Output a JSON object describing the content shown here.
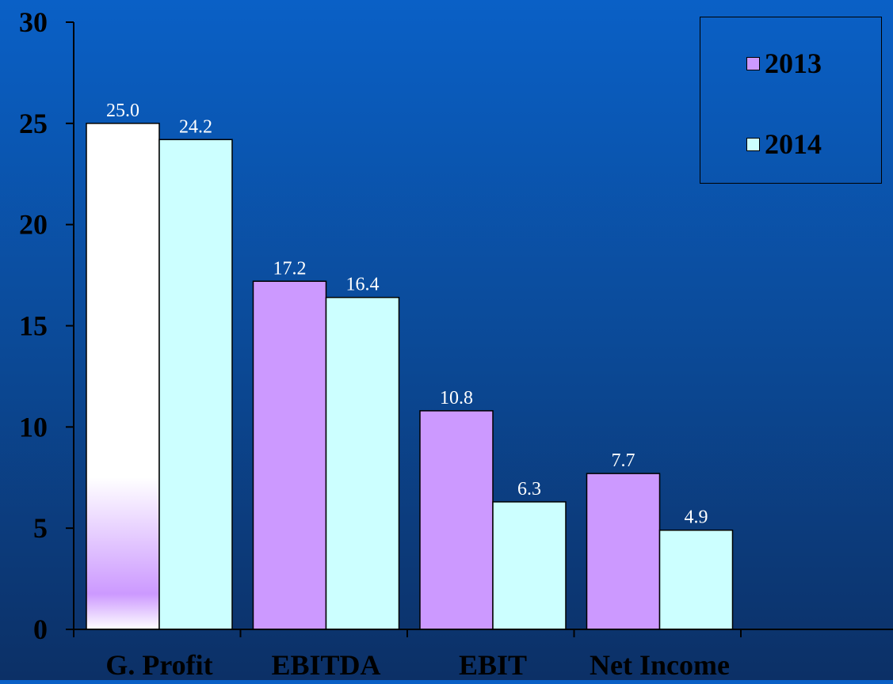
{
  "chart_data": {
    "type": "bar",
    "categories": [
      "G. Profit",
      "EBITDA",
      "EBIT",
      "Net Income"
    ],
    "series": [
      {
        "name": "2013",
        "values": [
          25.0,
          17.2,
          10.8,
          7.7
        ],
        "color": "#cc99ff"
      },
      {
        "name": "2014",
        "values": [
          24.2,
          16.4,
          6.3,
          4.9
        ],
        "color": "#ccffff"
      }
    ],
    "data_labels": [
      [
        "25.0",
        "17.2",
        "10.8",
        "7.7"
      ],
      [
        "24.2",
        "16.4",
        "6.3",
        "4.9"
      ]
    ],
    "yticks": [
      "0",
      "5",
      "10",
      "15",
      "20",
      "25",
      "30"
    ],
    "ylim": [
      0,
      30
    ],
    "title": "",
    "xlabel": "",
    "ylabel": "",
    "grid": false,
    "legend_position": "top-right",
    "first_bar_gradient": {
      "top": "#ffffff",
      "bottom": "#cc99ff"
    }
  }
}
